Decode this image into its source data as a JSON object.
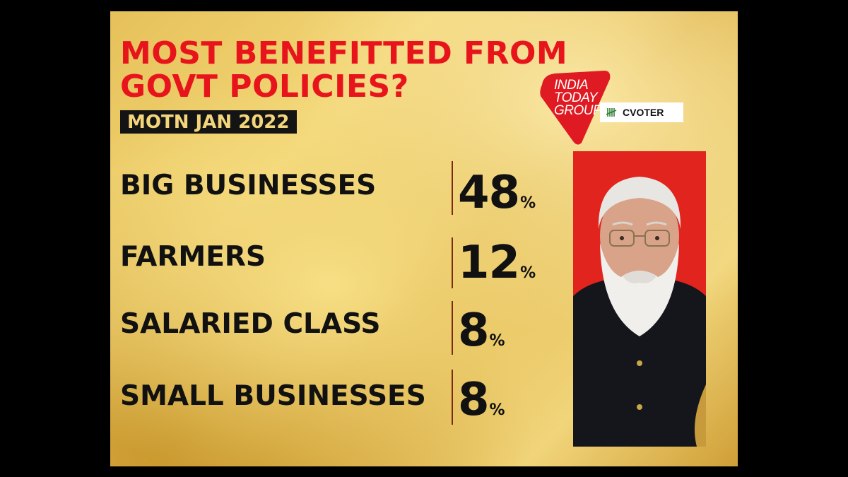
{
  "title": "MOST BENEFITTED FROM GOVT POLICIES?",
  "subtitle": "MOTN JAN 2022",
  "logos": {
    "india_today_group": "INDIA TODAY GROUP",
    "india_today_lines": [
      "INDIA",
      "TODAY",
      "GROUP"
    ],
    "cvoter": "CVOTER",
    "brand_red": "#e01a22"
  },
  "chart_data": {
    "type": "table",
    "title": "MOST BENEFITTED FROM GOVT POLICIES?",
    "subtitle": "MOTN JAN 2022",
    "unit": "%",
    "categories": [
      "BIG BUSINESSES",
      "FARMERS",
      "SALARIED CLASS",
      "SMALL BUSINESSES"
    ],
    "values": [
      48,
      12,
      8,
      8
    ]
  },
  "colors": {
    "title": "#e8141c",
    "text": "#111111",
    "background": "#e9c763",
    "subtitle_bg": "#141414",
    "subtitle_text": "#f3d57c",
    "divider": "#7a2a10"
  },
  "photo": {
    "icon": "person-portrait"
  }
}
